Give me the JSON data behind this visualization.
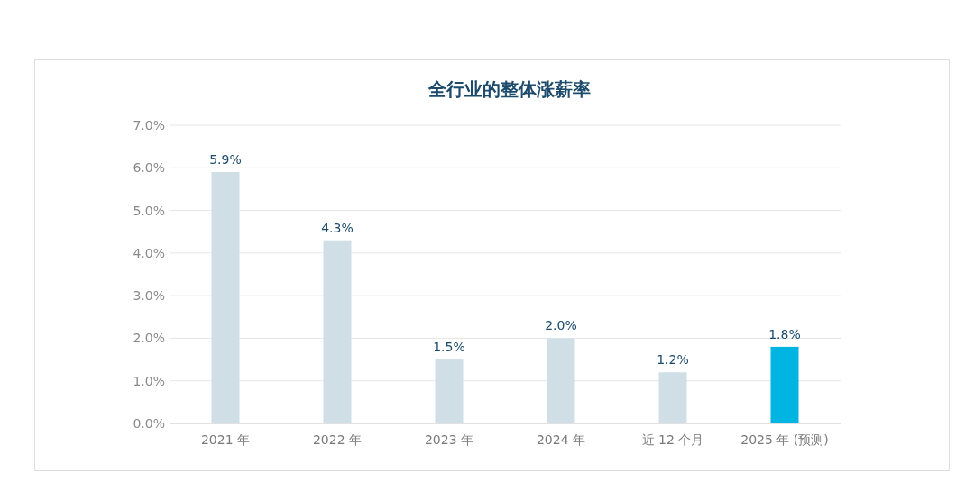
{
  "chart_data": {
    "type": "bar",
    "title": "全行业的整体涨薪率",
    "categories": [
      "2021 年",
      "2022 年",
      "2023 年",
      "2024 年",
      "近 12 个月",
      "2025 年 (预测)"
    ],
    "values": [
      5.9,
      4.3,
      1.5,
      2.0,
      1.2,
      1.8
    ],
    "value_labels": [
      "5.9%",
      "4.3%",
      "1.5%",
      "2.0%",
      "1.2%",
      "1.8%"
    ],
    "colors": [
      "#d0dfe6",
      "#d0dfe6",
      "#d0dfe6",
      "#d0dfe6",
      "#d0dfe6",
      "#00b5e2"
    ],
    "ylim": [
      0,
      7
    ],
    "yticks": [
      {
        "value": 0,
        "label": "0.0%"
      },
      {
        "value": 1,
        "label": "1.0%"
      },
      {
        "value": 2,
        "label": "2.0%"
      },
      {
        "value": 3,
        "label": "3.0%"
      },
      {
        "value": 4,
        "label": "4.0%"
      },
      {
        "value": 5,
        "label": "5.0%"
      },
      {
        "value": 6,
        "label": "6.0%"
      },
      {
        "value": 7,
        "label": "7.0%"
      }
    ],
    "grid": "y"
  }
}
